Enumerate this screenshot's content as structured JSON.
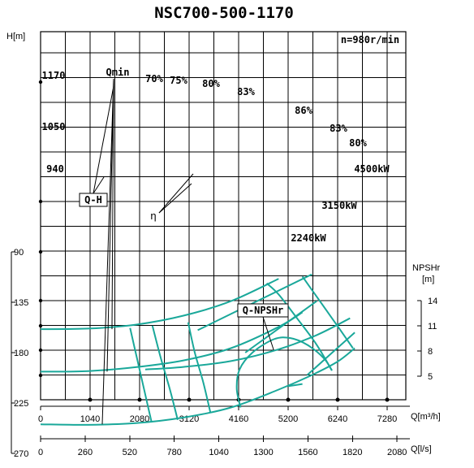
{
  "chart_data": {
    "type": "line",
    "title": "NSC700-500-1170",
    "speed": "n=980r/min",
    "head_axis": {
      "label": "H[m]",
      "ticks": [
        90,
        135,
        180,
        225,
        270
      ],
      "ylim": [
        90,
        270
      ]
    },
    "npsh_axis": {
      "label": "NPSHr",
      "unit": "[m]",
      "ticks": [
        5,
        8,
        11,
        14
      ],
      "ylim": [
        5,
        14
      ]
    },
    "flow_axis_m3h": {
      "label": "Q[m³/h]",
      "ticks": [
        0,
        1040,
        2080,
        3120,
        4160,
        5200,
        6240,
        7280
      ]
    },
    "flow_axis_ls": {
      "label": "Q[l/s]",
      "ticks": [
        0,
        260,
        520,
        780,
        1040,
        1300,
        1560,
        1820,
        2080
      ]
    },
    "impeller_diameters": [
      "1170",
      "1050",
      "940"
    ],
    "series": [
      {
        "name": "1170",
        "kind": "Q-H",
        "x": [
          0,
          1000,
          2000,
          3000,
          4000,
          5000,
          5700,
          6240,
          6600
        ],
        "y": [
          244,
          244.5,
          243,
          238,
          229,
          213,
          200,
          188,
          176
        ]
      },
      {
        "name": "1050",
        "kind": "Q-H",
        "x": [
          0,
          1000,
          2000,
          3000,
          4000,
          5000,
          5500
        ],
        "y": [
          197,
          196.5,
          193,
          187,
          176,
          157,
          144
        ]
      },
      {
        "name": "940",
        "kind": "Q-H",
        "x": [
          0,
          1000,
          2000,
          3000,
          4000,
          5000
        ],
        "y": [
          159,
          158.5,
          155,
          147,
          134,
          114
        ]
      }
    ],
    "efficiency_contours": [
      {
        "label": "70%",
        "x": [
          2330,
          2180,
          2030,
          1880
        ],
        "y": [
          242,
          214,
          186,
          158
        ]
      },
      {
        "label": "75%",
        "x": [
          2880,
          2710,
          2520,
          2350
        ],
        "y": [
          240,
          212,
          184,
          156
        ]
      },
      {
        "label": "80%",
        "x": [
          3570,
          3420,
          3240,
          3100
        ],
        "y": [
          234,
          207,
          180,
          153
        ]
      },
      {
        "label": "83%",
        "x": [
          4200,
          4120,
          4180,
          4450,
          4900,
          5250,
          5600,
          5950,
          6120
        ],
        "y": [
          229,
          212,
          195,
          180,
          168,
          167,
          173,
          185,
          196
        ]
      },
      {
        "label": "86%",
        "x": [
          5200,
          5500
        ],
        "y": [
          210,
          208
        ]
      },
      {
        "label": "83%",
        "x": [
          6120,
          5800,
          5400,
          5000,
          4750
        ],
        "y": [
          196,
          173,
          150,
          128,
          118
        ]
      },
      {
        "label": "80%",
        "x": [
          6560,
          6300,
          6000,
          5700,
          5500
        ],
        "y": [
          176,
          160,
          142,
          124,
          112
        ]
      }
    ],
    "power_lines": [
      {
        "label": "4500kW",
        "x": [
          5600,
          6600
        ],
        "y": [
          200,
          162
        ]
      },
      {
        "label": "3150kW",
        "x": [
          4300,
          5800
        ],
        "y": [
          180,
          134
        ]
      },
      {
        "label": "2240kW",
        "x": [
          3300,
          5700
        ],
        "y": [
          160,
          110
        ]
      }
    ],
    "qmin": {
      "label": "Qmin",
      "x": 1500
    },
    "npsh": {
      "name": "Q-NPSHr",
      "x": [
        2200,
        3000,
        4000,
        5000,
        5800,
        6500
      ],
      "y": [
        5.8,
        6.1,
        6.8,
        8.2,
        9.9,
        11.9
      ]
    },
    "annotations": [
      "Q-H",
      "η",
      "Q-NPSHr"
    ],
    "efficiency_labels": [
      "70%",
      "75%",
      "80%",
      "83%",
      "86%",
      "83%",
      "80%"
    ],
    "power_labels": [
      "4500kW",
      "3150kW",
      "2240kW"
    ],
    "grid": true
  }
}
